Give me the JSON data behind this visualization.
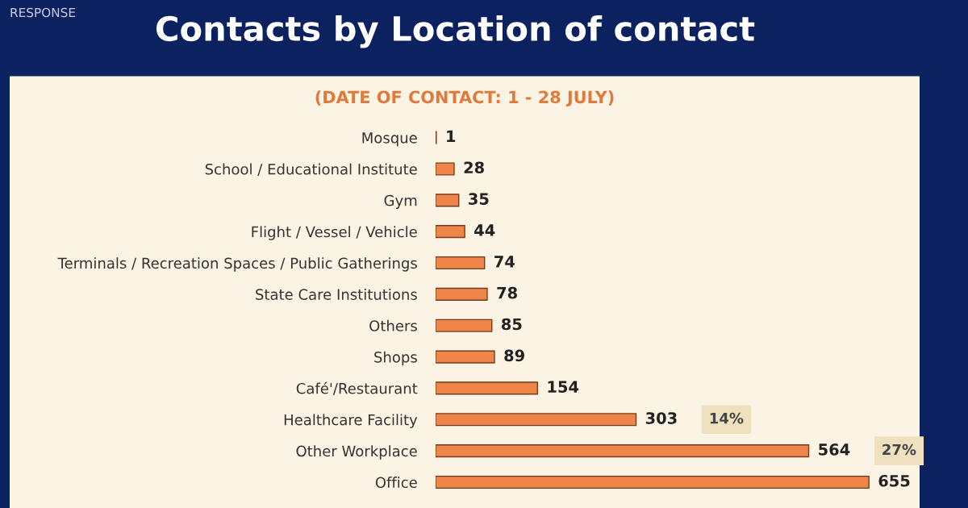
{
  "chart_data": {
    "type": "bar",
    "orientation": "horizontal",
    "title": "Contacts by Location of contact",
    "subtitle": "(DATE OF CONTACT: 1 - 28 JULY)",
    "categories": [
      "Mosque",
      "School / Educational Institute",
      "Gym",
      "Flight / Vessel / Vehicle",
      "Terminals / Recreation Spaces / Public Gatherings",
      "State Care Institutions",
      "Others",
      "Shops",
      "Café'/Restaurant",
      "Healthcare Facility",
      "Other Workplace",
      "Office"
    ],
    "values": [
      1,
      28,
      35,
      44,
      74,
      78,
      85,
      89,
      154,
      303,
      564,
      655
    ],
    "color": "#f0854a",
    "data_labels": true,
    "tick_labels": "y",
    "grid": false,
    "legend": false,
    "annotations": [
      "RESPONSE",
      "14%",
      "27%"
    ]
  }
}
